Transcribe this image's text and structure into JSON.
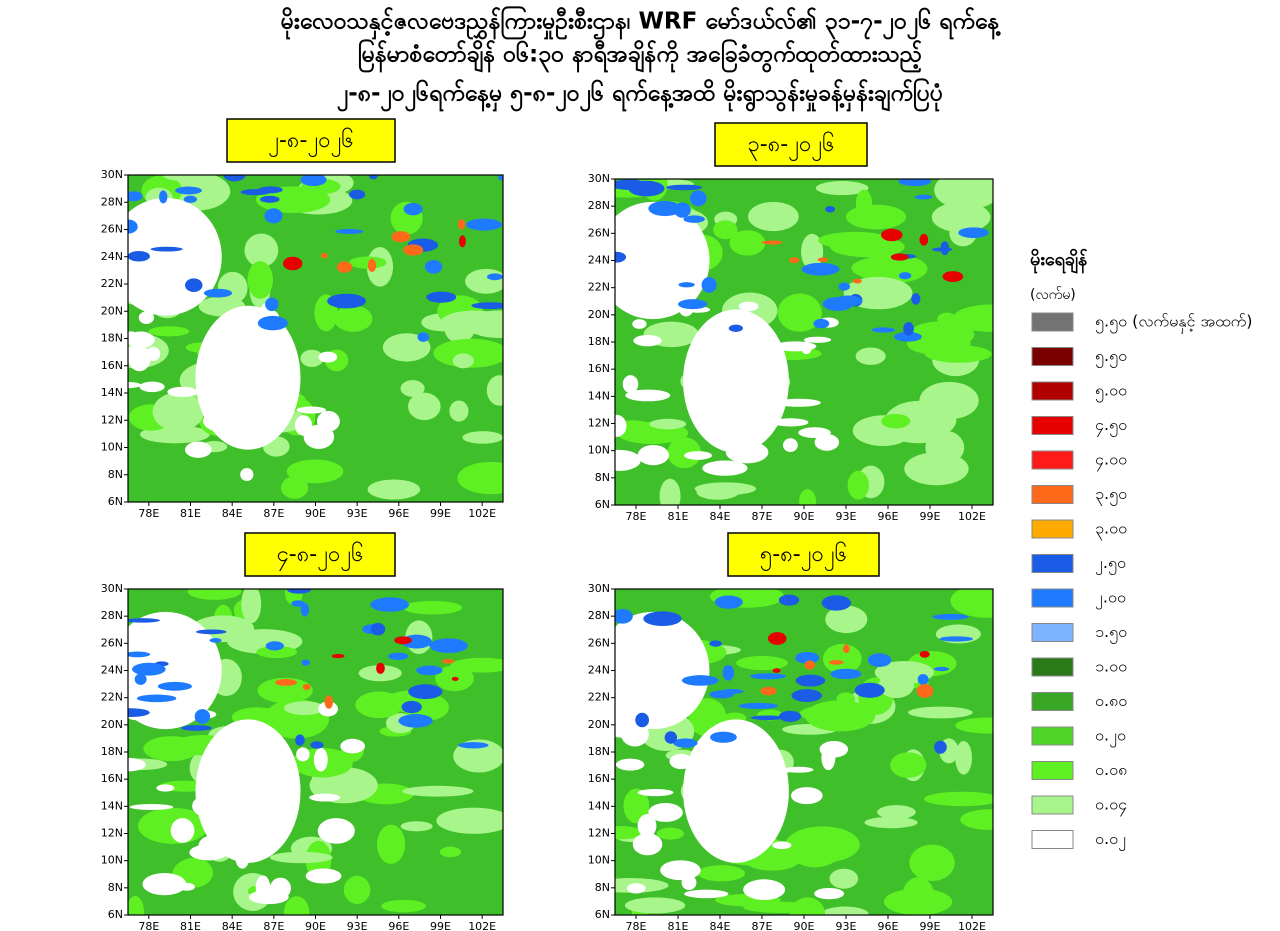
{
  "header": {
    "lines": [
      "မိုးလေဝသနှင့်ဇလဗေဒညွှန်ကြားမှုဦးစီးဌာန၊ WRF မော်ဒယ်လ်၏ ၃၁-၇-၂၀၂၆ ရက်နေ့",
      "မြန်မာစံတော်ချိန် ၀၆:၃၀ နာရီအချိန်ကို အခြေခံတွက်ထုတ်ထားသည့်",
      "၂-၈-၂၀၂၆ရက်နေ့မှ ၅-၈-၂၀၂၆ ရက်နေ့အထိ မိုးရွာသွန်းမှုခန့်မှန်းချက်ပြပုံ"
    ]
  },
  "maps": [
    {
      "date": "၂-၈-၂၀၂၆"
    },
    {
      "date": "၃-၈-၂၀၂၆"
    },
    {
      "date": "၄-၈-၂၀၂၆"
    },
    {
      "date": "၅-၈-၂၀၂၆"
    }
  ],
  "axes": {
    "lat_labels": [
      "30N",
      "28N",
      "26N",
      "24N",
      "22N",
      "20N",
      "18N",
      "16N",
      "14N",
      "12N",
      "10N",
      "8N",
      "6N"
    ],
    "lon_labels": [
      "78E",
      "81E",
      "84E",
      "87E",
      "90E",
      "93E",
      "96E",
      "99E",
      "102E"
    ]
  },
  "legend": {
    "title": "မိုးရေချိန်",
    "unit": "(လက်မ)",
    "items": [
      {
        "label": "၅.၅၀ (လက်မနှင့် အထက်)",
        "color": "#737373"
      },
      {
        "label": "၅.၅၀",
        "color": "#7a0000"
      },
      {
        "label": "၅.၀၀",
        "color": "#b00000"
      },
      {
        "label": "၄.၅၀",
        "color": "#e60000"
      },
      {
        "label": "၄.၀၀",
        "color": "#ff1a1a"
      },
      {
        "label": "၃.၅၀",
        "color": "#ff6a1a"
      },
      {
        "label": "၃.၀၀",
        "color": "#ffaa00"
      },
      {
        "label": "၂.၅၀",
        "color": "#1a5ce6"
      },
      {
        "label": "၂.၀၀",
        "color": "#1e7bff"
      },
      {
        "label": "၁.၅၀",
        "color": "#7eb3ff"
      },
      {
        "label": "၁.၀၀",
        "color": "#2a7a1a"
      },
      {
        "label": "၀.၈၀",
        "color": "#3aa626"
      },
      {
        "label": "၀.၂၀",
        "color": "#4fd42a"
      },
      {
        "label": "၀.၀၈",
        "color": "#5ef022"
      },
      {
        "label": "၀.၀၄",
        "color": "#a8f58c"
      },
      {
        "label": "၀.၀၂",
        "color": "#ffffff"
      }
    ]
  }
}
